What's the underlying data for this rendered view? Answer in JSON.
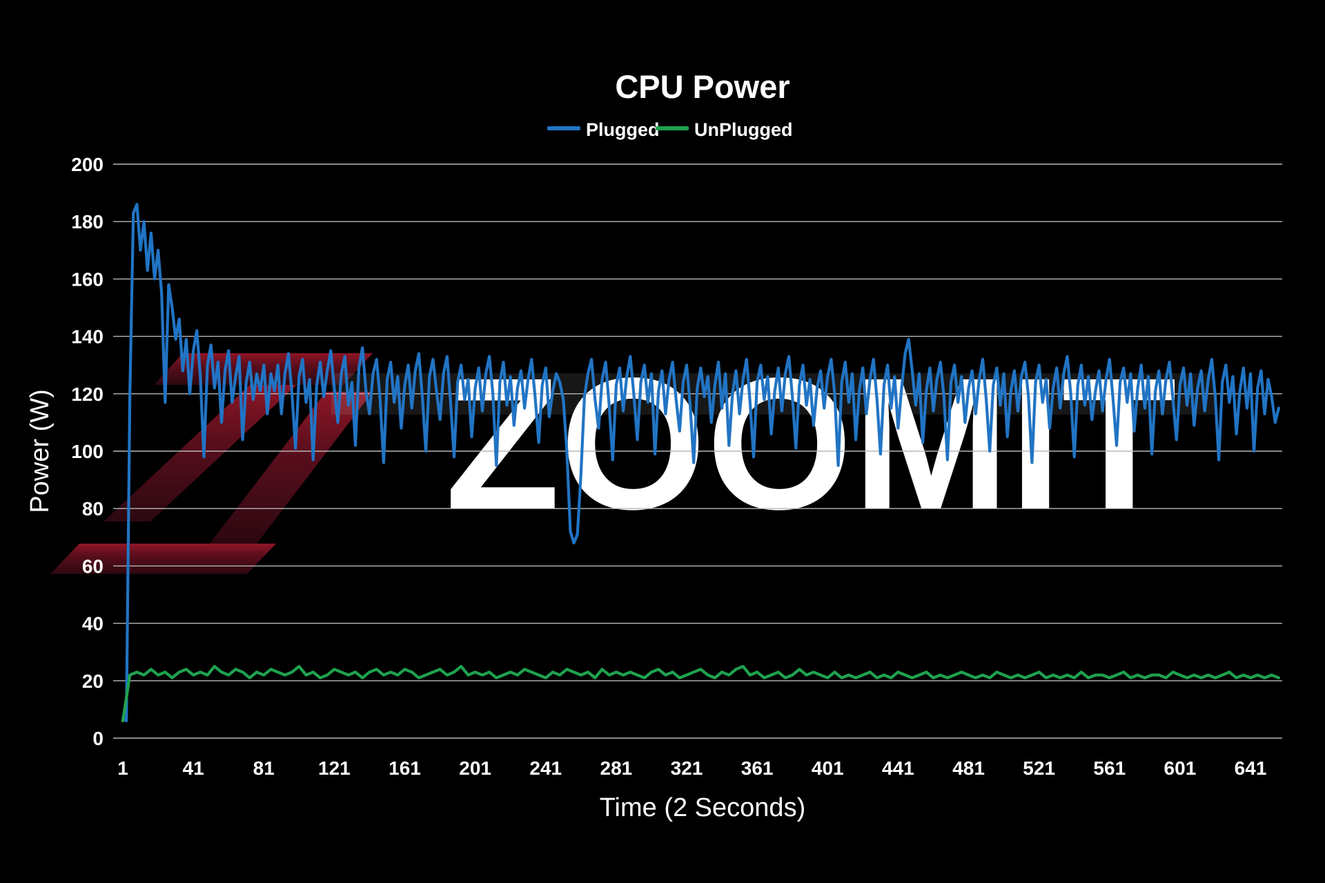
{
  "page": {
    "background": "#000000",
    "text_color": "#ffffff",
    "gridline_color": "#b6b8ba"
  },
  "watermark": {
    "text": "ZOOMIT",
    "logo": "zoomit-z-logo",
    "text_color_top": "#6b6b6b",
    "text_color_bottom": "#262626",
    "logo_color_top": "#8e1626",
    "logo_color_bottom": "#2c0810",
    "stripe_color": "rgba(255,255,255,0.09)"
  },
  "chart_data": {
    "type": "line",
    "title": "CPU Power",
    "xlabel": "Time (2 Seconds)",
    "ylabel": "Power (W)",
    "legend_position": "top-center",
    "grid": true,
    "xlim": [
      1,
      659
    ],
    "ylim": [
      0,
      200
    ],
    "x_ticks": [
      1,
      41,
      81,
      121,
      161,
      201,
      241,
      281,
      321,
      361,
      401,
      441,
      481,
      521,
      561,
      601,
      641
    ],
    "y_ticks": [
      0,
      20,
      40,
      60,
      80,
      100,
      120,
      140,
      160,
      180,
      200
    ],
    "series": [
      {
        "name": "Plugged",
        "color": "#2174C4",
        "x_start": 1,
        "x_step": 2,
        "values": [
          7,
          6,
          120,
          183,
          186,
          170,
          180,
          163,
          176,
          160,
          170,
          155,
          117,
          158,
          150,
          139,
          146,
          128,
          139,
          120,
          135,
          142,
          126,
          98,
          130,
          137,
          122,
          131,
          110,
          128,
          135,
          117,
          126,
          133,
          104,
          124,
          131,
          118,
          127,
          121,
          130,
          113,
          127,
          121,
          130,
          113,
          127,
          134,
          120,
          101,
          126,
          132,
          117,
          125,
          97,
          123,
          131,
          119,
          128,
          135,
          122,
          110,
          127,
          133,
          116,
          124,
          102,
          129,
          136,
          121,
          113,
          127,
          132,
          118,
          96,
          125,
          131,
          117,
          126,
          108,
          123,
          130,
          115,
          128,
          134,
          119,
          100,
          126,
          132,
          121,
          111,
          127,
          133,
          117,
          98,
          124,
          130,
          118,
          125,
          105,
          122,
          129,
          114,
          127,
          133,
          120,
          95,
          124,
          131,
          116,
          126,
          109,
          122,
          128,
          115,
          125,
          132,
          119,
          103,
          123,
          129,
          112,
          121,
          127,
          124,
          118,
          100,
          72,
          68,
          71,
          92,
          119,
          127,
          132,
          118,
          108,
          125,
          131,
          116,
          97,
          123,
          129,
          114,
          126,
          133,
          120,
          104,
          124,
          130,
          117,
          127,
          99,
          121,
          128,
          113,
          125,
          131,
          118,
          107,
          124,
          130,
          116,
          96,
          122,
          129,
          119,
          126,
          110,
          123,
          131,
          115,
          127,
          102,
          120,
          128,
          113,
          125,
          132,
          117,
          98,
          124,
          130,
          118,
          126,
          106,
          121,
          129,
          114,
          127,
          133,
          119,
          101,
          123,
          130,
          116,
          125,
          109,
          122,
          128,
          115,
          126,
          132,
          120,
          95,
          124,
          131,
          117,
          127,
          104,
          121,
          129,
          113,
          125,
          132,
          118,
          99,
          123,
          130,
          115,
          126,
          108,
          122,
          134,
          139,
          128,
          116,
          127,
          103,
          121,
          129,
          114,
          125,
          131,
          119,
          97,
          124,
          130,
          117,
          126,
          110,
          122,
          128,
          113,
          125,
          132,
          118,
          100,
          123,
          129,
          116,
          127,
          105,
          121,
          128,
          114,
          126,
          131,
          119,
          96,
          124,
          130,
          117,
          125,
          108,
          122,
          129,
          115,
          127,
          133,
          120,
          98,
          123,
          130,
          116,
          126,
          111,
          121,
          128,
          114,
          125,
          132,
          118,
          102,
          124,
          129,
          117,
          127,
          107,
          122,
          130,
          115,
          126,
          99,
          121,
          128,
          113,
          125,
          131,
          118,
          104,
          123,
          129,
          116,
          127,
          109,
          122,
          128,
          114,
          125,
          132,
          119,
          97,
          124,
          130,
          117,
          126,
          106,
          121,
          129,
          115,
          127,
          100,
          122,
          128,
          113,
          125,
          119,
          110,
          115
        ]
      },
      {
        "name": "UnPlugged",
        "color": "#1FA24E",
        "x_start": 1,
        "x_step": 4,
        "values": [
          6,
          22,
          23,
          22,
          24,
          22,
          23,
          21,
          23,
          24,
          22,
          23,
          22,
          25,
          23,
          22,
          24,
          23,
          21,
          23,
          22,
          24,
          23,
          22,
          23,
          25,
          22,
          23,
          21,
          22,
          24,
          23,
          22,
          23,
          21,
          23,
          24,
          22,
          23,
          22,
          24,
          23,
          21,
          22,
          23,
          24,
          22,
          23,
          25,
          22,
          23,
          22,
          23,
          21,
          22,
          23,
          22,
          24,
          23,
          22,
          21,
          23,
          22,
          24,
          23,
          22,
          23,
          21,
          24,
          22,
          23,
          22,
          23,
          22,
          21,
          23,
          24,
          22,
          23,
          21,
          22,
          23,
          24,
          22,
          21,
          23,
          22,
          24,
          25,
          22,
          23,
          21,
          22,
          23,
          21,
          22,
          24,
          22,
          23,
          22,
          21,
          23,
          21,
          22,
          21,
          22,
          23,
          21,
          22,
          21,
          23,
          22,
          21,
          22,
          23,
          21,
          22,
          21,
          22,
          23,
          22,
          21,
          22,
          21,
          23,
          22,
          21,
          22,
          21,
          22,
          23,
          21,
          22,
          21,
          22,
          21,
          23,
          21,
          22,
          22,
          21,
          22,
          23,
          21,
          22,
          21,
          22,
          22,
          21,
          23,
          22,
          21,
          22,
          21,
          22,
          21,
          22,
          23,
          21,
          22,
          21,
          22,
          21,
          22,
          21
        ]
      }
    ]
  }
}
